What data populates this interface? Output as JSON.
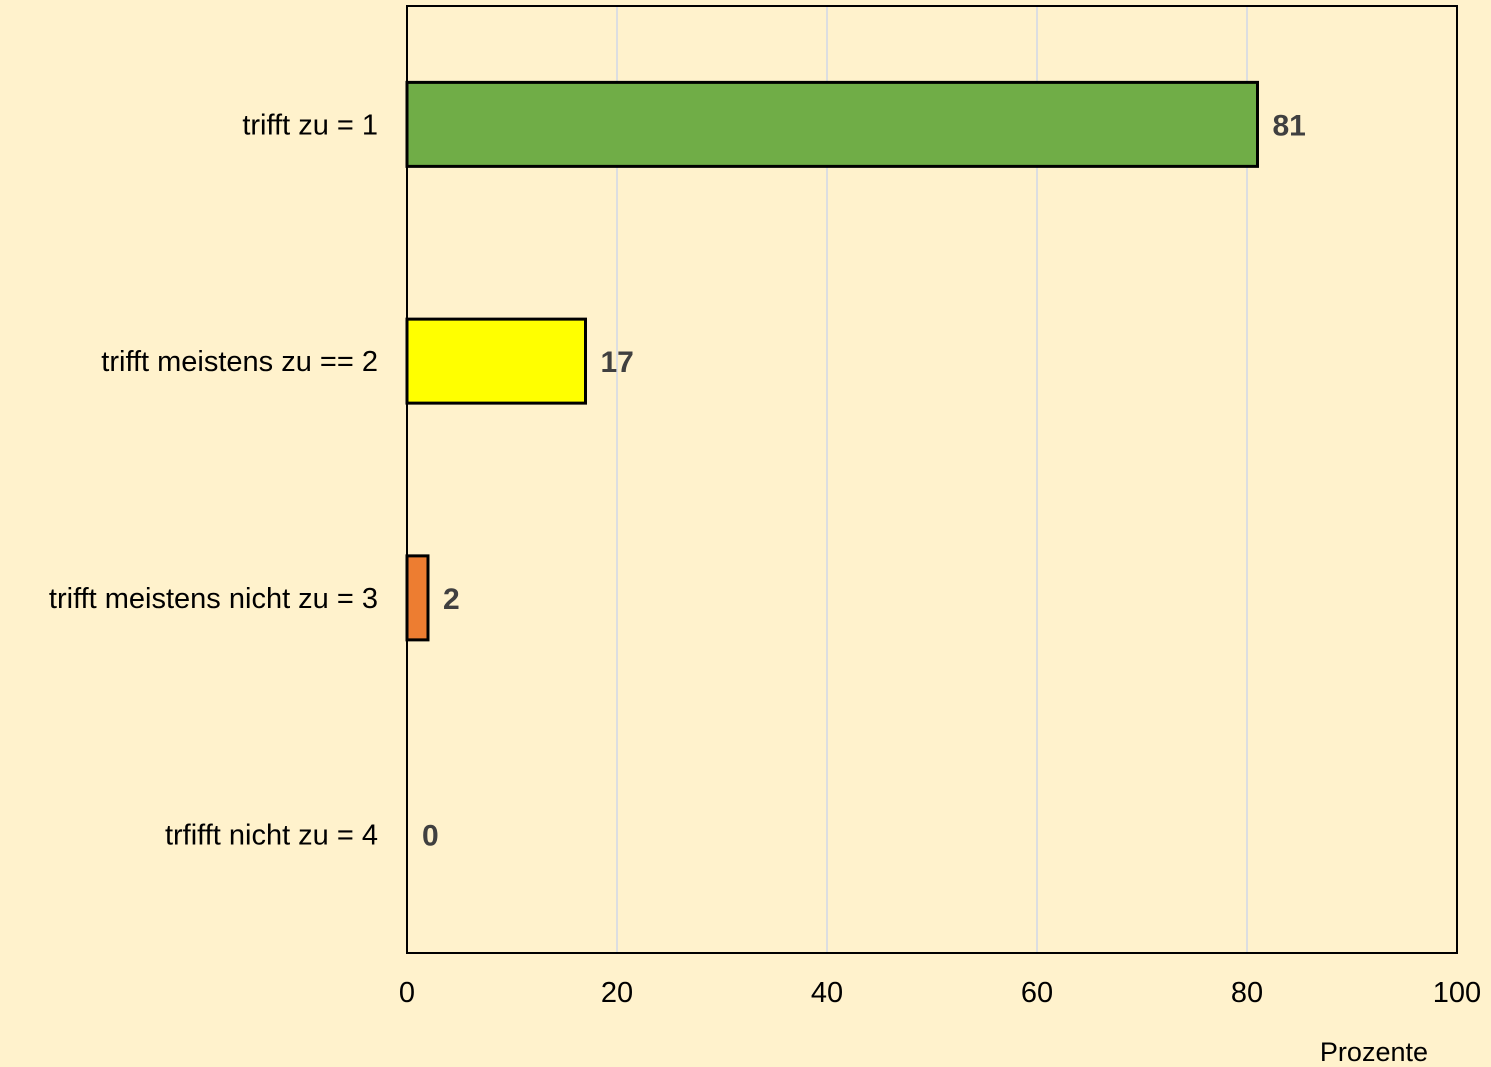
{
  "chart_data": {
    "type": "bar",
    "orientation": "horizontal",
    "categories": [
      "trifft zu = 1",
      "trifft meistens zu == 2",
      "trifft meistens nicht zu = 3",
      "trfifft nicht zu = 4"
    ],
    "values": [
      81,
      17,
      2,
      0
    ],
    "data_labels": [
      "81",
      "17",
      "2",
      "0"
    ],
    "colors": [
      "#70ad47",
      "#ffff00",
      "#ed7d31",
      "#a5a5a5"
    ],
    "xlabel": "Prozente",
    "ylabel": "",
    "title": "",
    "xlim": [
      0,
      100
    ],
    "x_ticks": [
      0,
      20,
      40,
      60,
      80,
      100
    ],
    "x_tick_labels": [
      "0",
      "20",
      "40",
      "60",
      "80",
      "100"
    ],
    "grid": "vertical",
    "legend": "none"
  },
  "style": {
    "background": "#fff2cc",
    "plot_background": "#fff2cc",
    "gridline_color": "#d0d8e8",
    "bar_border": "#000000",
    "data_label_color": "#404040"
  }
}
